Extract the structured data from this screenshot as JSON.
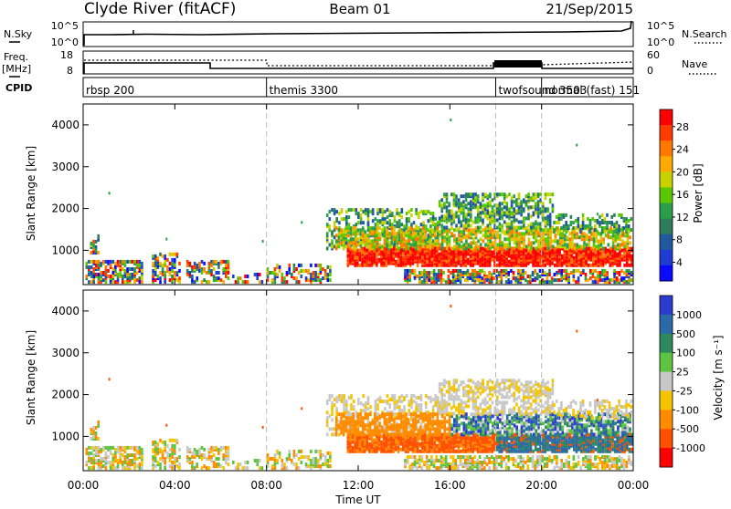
{
  "header": {
    "station": "Clyde River (fitACF)",
    "beam": "Beam 01",
    "date": "21/Sep/2015"
  },
  "strip_panels": {
    "nsky": {
      "label": "N.Sky",
      "right_label": "N.Search",
      "ticks_left": [
        "10^5",
        "10^0"
      ],
      "ticks_right": [
        "10^5",
        "10^0"
      ]
    },
    "freq": {
      "label_line1": "Freq.",
      "label_line2": "[MHz]",
      "ticks_left": [
        "18",
        "8"
      ],
      "ticks_right": [
        "60",
        "0"
      ],
      "right_label": "Nave"
    },
    "cpid": {
      "label": "CPID",
      "programs": [
        {
          "name": "rbsp 200",
          "start_hour": 0
        },
        {
          "name": "themis 3300",
          "start_hour": 8
        },
        {
          "name": "twofsound 3503",
          "start_hour": 18
        },
        {
          "name": "normal (fast) 151",
          "start_hour": 20
        }
      ]
    }
  },
  "chart_data": [
    {
      "type": "heatmap",
      "name": "power",
      "ylabel": "Slant Range [km]",
      "y_ticks": [
        1000,
        2000,
        3000,
        4000
      ],
      "ylim": [
        180,
        4500
      ],
      "xlim": [
        0,
        24
      ],
      "colorbar": {
        "label": "Power [dB]",
        "ticks": [
          "28",
          "24",
          "20",
          "16",
          "12",
          "8",
          "4"
        ],
        "colors": [
          "#ff0000",
          "#ff3c00",
          "#ff7800",
          "#ffaa00",
          "#c8d200",
          "#5ac800",
          "#2a9e4a",
          "#2e7d5a",
          "#1e5aa0",
          "#1e3cd2",
          "#0a0aff"
        ]
      }
    },
    {
      "type": "heatmap",
      "name": "velocity",
      "ylabel": "Slant Range [km]",
      "y_ticks": [
        1000,
        2000,
        3000,
        4000
      ],
      "ylim": [
        180,
        4500
      ],
      "xlim": [
        0,
        24
      ],
      "colorbar": {
        "label": "Velocity [m s⁻¹]",
        "ticks": [
          "1000",
          "500",
          "100",
          "25",
          "-25",
          "-100",
          "-500",
          "-1000"
        ],
        "colors": [
          "#2b3ccf",
          "#2a6aa8",
          "#2e8a5e",
          "#5cc440",
          "#c8c8c8",
          "#f5c400",
          "#ff8c00",
          "#ff5000",
          "#ff0000"
        ]
      }
    }
  ],
  "x_axis": {
    "ticks": [
      "00:00",
      "04:00",
      "08:00",
      "12:00",
      "16:00",
      "20:00",
      "00:00"
    ],
    "label": "Time UT"
  }
}
